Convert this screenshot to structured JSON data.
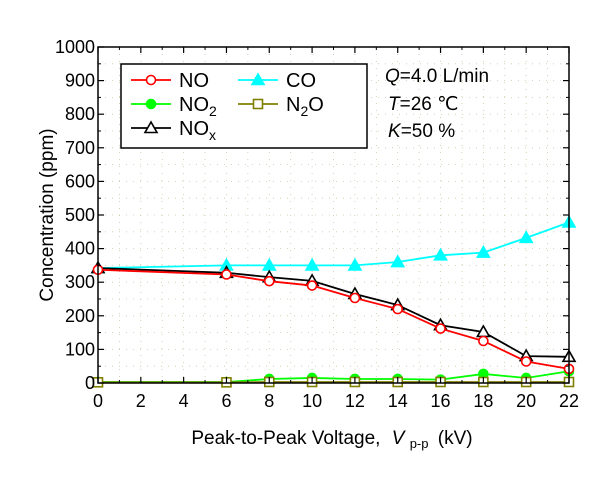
{
  "chart_data": {
    "type": "line",
    "title": "",
    "xlabel_main": "Peak-to-Peak Voltage,",
    "xlabel_var": "V",
    "xlabel_sub": "p-p",
    "xlabel_unit": "(kV)",
    "ylabel": "Concentration (ppm)",
    "xlim": [
      0,
      22
    ],
    "ylim": [
      0,
      1000
    ],
    "x_ticks": [
      0,
      2,
      4,
      6,
      8,
      10,
      12,
      14,
      16,
      18,
      20,
      22
    ],
    "y_ticks": [
      0,
      100,
      200,
      300,
      400,
      500,
      600,
      700,
      800,
      900,
      1000
    ],
    "grid": true,
    "legend_placement": "top-left",
    "series": [
      {
        "name": "NO",
        "label_main": "NO",
        "label_sub": "",
        "color": "#ff0000",
        "marker": "open-circle",
        "x": [
          0,
          6,
          8,
          10,
          12,
          14,
          16,
          18,
          20,
          22
        ],
        "y": [
          337,
          323,
          303,
          290,
          253,
          220,
          162,
          125,
          64,
          42
        ]
      },
      {
        "name": "NO2",
        "label_main": "NO",
        "label_sub": "2",
        "color": "#00ff00",
        "marker": "filled-circle",
        "x": [
          0,
          6,
          8,
          10,
          12,
          14,
          16,
          18,
          20,
          22
        ],
        "y": [
          3,
          3,
          12,
          15,
          12,
          12,
          10,
          27,
          15,
          35
        ]
      },
      {
        "name": "NOx",
        "label_main": "NO",
        "label_sub": "x",
        "color": "#000000",
        "marker": "open-triangle",
        "x": [
          0,
          6,
          8,
          10,
          12,
          14,
          16,
          18,
          20,
          22
        ],
        "y": [
          342,
          328,
          315,
          304,
          265,
          232,
          172,
          152,
          80,
          78
        ]
      },
      {
        "name": "CO",
        "label_main": "CO",
        "label_sub": "",
        "color": "#00ffff",
        "marker": "filled-triangle",
        "x": [
          0,
          6,
          8,
          10,
          12,
          14,
          16,
          18,
          20,
          22
        ],
        "y": [
          342,
          350,
          350,
          350,
          350,
          360,
          380,
          388,
          432,
          478
        ]
      },
      {
        "name": "N2O",
        "label_main": "N",
        "label_sub": "2",
        "label_tail": "O",
        "color": "#808000",
        "marker": "open-square",
        "x": [
          0,
          6,
          8,
          10,
          12,
          14,
          16,
          18,
          20,
          22
        ],
        "y": [
          2,
          2,
          3,
          3,
          3,
          3,
          3,
          3,
          3,
          3
        ]
      }
    ],
    "conditions": {
      "q_var": "Q",
      "q_text": "=4.0 L/min",
      "t_var": "T",
      "t_text": "=26 ℃",
      "k_var": "K",
      "k_text": "=50 %"
    }
  }
}
